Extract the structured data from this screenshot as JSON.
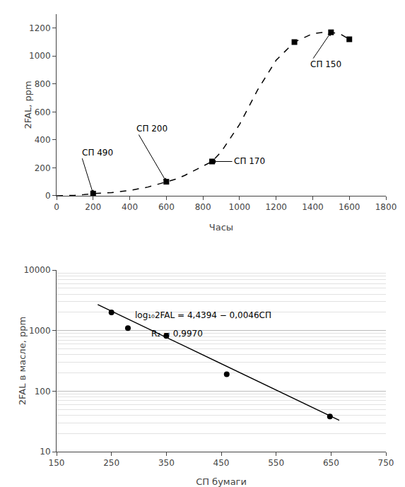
{
  "chart_data": [
    {
      "type": "line",
      "xlabel": "Часы",
      "ylabel": "2FAL, ppm",
      "xlim": [
        0,
        1800
      ],
      "ylim": [
        0,
        1300
      ],
      "xticks": [
        0,
        200,
        400,
        600,
        800,
        1000,
        1200,
        1400,
        1600,
        1800
      ],
      "yticks": [
        0,
        200,
        400,
        600,
        800,
        1000,
        1200
      ],
      "grid": false,
      "series": [
        {
          "type": "line",
          "line_style": "dashed",
          "color": "#000000",
          "x": [
            0,
            50,
            100,
            150,
            200,
            300,
            400,
            500,
            600,
            650,
            700,
            750,
            800,
            850,
            900,
            1000,
            1100,
            1200,
            1300,
            1400,
            1450,
            1500,
            1550,
            1600
          ],
          "values": [
            0,
            1,
            3,
            8,
            15,
            22,
            38,
            62,
            100,
            118,
            145,
            178,
            210,
            245,
            315,
            510,
            760,
            970,
            1100,
            1160,
            1168,
            1170,
            1158,
            1120
          ]
        },
        {
          "type": "scatter",
          "marker": "square",
          "color": "#000000",
          "x": [
            200,
            600,
            850,
            1300,
            1500,
            1600
          ],
          "values": [
            15,
            100,
            245,
            1100,
            1170,
            1120
          ]
        }
      ],
      "annotations": [
        {
          "text": "СП 490",
          "x": 200,
          "y": 15,
          "text_x": 130,
          "text_y": 310
        },
        {
          "text": "СП 200",
          "x": 600,
          "y": 100,
          "text_x": 430,
          "text_y": 480
        },
        {
          "text": "СП 170",
          "x": 850,
          "y": 245,
          "text_x": 960,
          "text_y": 245
        },
        {
          "text": "СП 150",
          "x": 1500,
          "y": 1170,
          "text_x": 1380,
          "text_y": 940
        }
      ]
    },
    {
      "type": "scatter",
      "log": "y",
      "xlabel": "СП бумаги",
      "ylabel": "2FAL в масле, ppm",
      "xlim": [
        150,
        750
      ],
      "ylim": [
        10,
        10000
      ],
      "xticks": [
        150,
        250,
        350,
        450,
        550,
        650,
        750
      ],
      "yticks": [
        10,
        100,
        1000,
        10000
      ],
      "grid": "y",
      "series": [
        {
          "type": "line",
          "line_style": "solid",
          "color": "#000000",
          "x": [
            225,
            665
          ],
          "values": [
            2700,
            33
          ]
        },
        {
          "type": "scatter",
          "marker": "circle",
          "color": "#000000",
          "x": [
            250,
            280,
            350,
            460,
            648
          ],
          "values": [
            2000,
            1100,
            820,
            190,
            38
          ]
        }
      ],
      "annotations": [
        {
          "text": "log₁₀2FAL = 4,4394 − 0,0046СП",
          "x": 290,
          "y": 1800
        },
        {
          "text": "R₂ = 0,9970",
          "x": 320,
          "y": 900
        }
      ]
    }
  ]
}
